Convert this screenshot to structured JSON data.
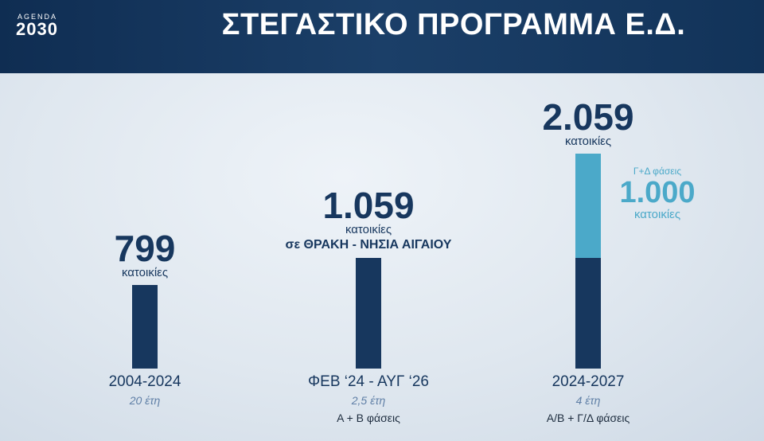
{
  "header": {
    "logo_top": "AGENDA",
    "logo_bottom": "2030",
    "title": "ΣΤΕΓΑΣΤΙΚΟ ΠΡΟΓΡΑΜΜΑ Ε.Δ."
  },
  "chart_data": {
    "type": "bar",
    "bars": [
      {
        "value": 799,
        "value_label": "799",
        "unit": "κατοικίες",
        "period": "2004-2024",
        "duration": "20 έτη",
        "color": "#17375e"
      },
      {
        "value": 1059,
        "value_label": "1.059",
        "unit": "κατοικίες",
        "note": "σε ΘΡΑΚΗ - ΝΗΣΙΑ ΑΙΓΑΙΟΥ",
        "period": "ΦΕΒ ‘24 - ΑΥΓ ‘26",
        "duration": "2,5 έτη",
        "phases": "Α + Β φάσεις",
        "color": "#17375e"
      },
      {
        "total": 2059,
        "total_label": "2.059",
        "unit": "κατοικίες",
        "period": "2024-2027",
        "duration": "4 έτη",
        "phases": "Α/Β + Γ/Δ φάσεις",
        "segments": [
          {
            "value": 1059,
            "color": "#17375e"
          },
          {
            "value": 1000,
            "value_label": "1.000",
            "unit": "κατοικίες",
            "caption": "Γ+Δ φάσεις",
            "color": "#4ba9c9"
          }
        ]
      }
    ]
  }
}
